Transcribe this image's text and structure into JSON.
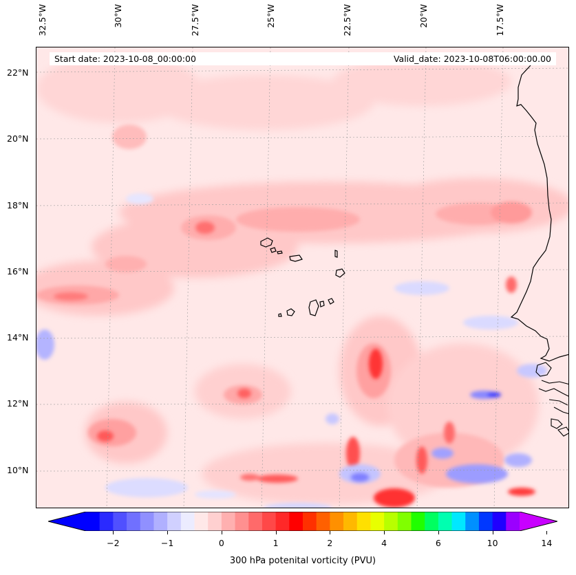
{
  "header": {
    "start_date": "Start date: 2023-10-08_00:00:00",
    "valid_date": "Valid_date: 2023-10-08T06:00:00.00"
  },
  "map": {
    "longitude_labels": [
      "32.5°W",
      "30°W",
      "27.5°W",
      "25°W",
      "22.5°W",
      "20°W",
      "17.5°W"
    ],
    "latitude_labels": [
      "22°N",
      "20°N",
      "18°N",
      "16°N",
      "14°N",
      "12°N",
      "10°N"
    ],
    "extent": {
      "lon_min": -33.0,
      "lon_max": -15.1,
      "lat_min": 8.9,
      "lat_max": 22.8
    },
    "field": "300 hPa potential vorticity",
    "grid": true
  },
  "colorbar": {
    "label": "300 hPa potenital vorticity (PVU)",
    "tick_labels": [
      "−2",
      "−1",
      "0",
      "1",
      "2",
      "4",
      "6",
      "10",
      "14"
    ],
    "colors": [
      "#0000ff",
      "#2a2aff",
      "#5050ff",
      "#7070ff",
      "#9090ff",
      "#b0b0ff",
      "#d0d0ff",
      "#ececff",
      "#ffe8e8",
      "#ffd0d0",
      "#ffb0b0",
      "#ff9090",
      "#ff6a6a",
      "#ff4848",
      "#ff2828",
      "#ff0000",
      "#ff3000",
      "#ff6000",
      "#ff9000",
      "#ffb800",
      "#ffe000",
      "#e8ff00",
      "#b8ff00",
      "#80ff00",
      "#20ff00",
      "#00ff60",
      "#00ffb0",
      "#00e8ff",
      "#0090ff",
      "#0038ff",
      "#2000ff",
      "#9a00ff"
    ],
    "under_color": "#0000ff",
    "over_color": "#c800ff"
  }
}
